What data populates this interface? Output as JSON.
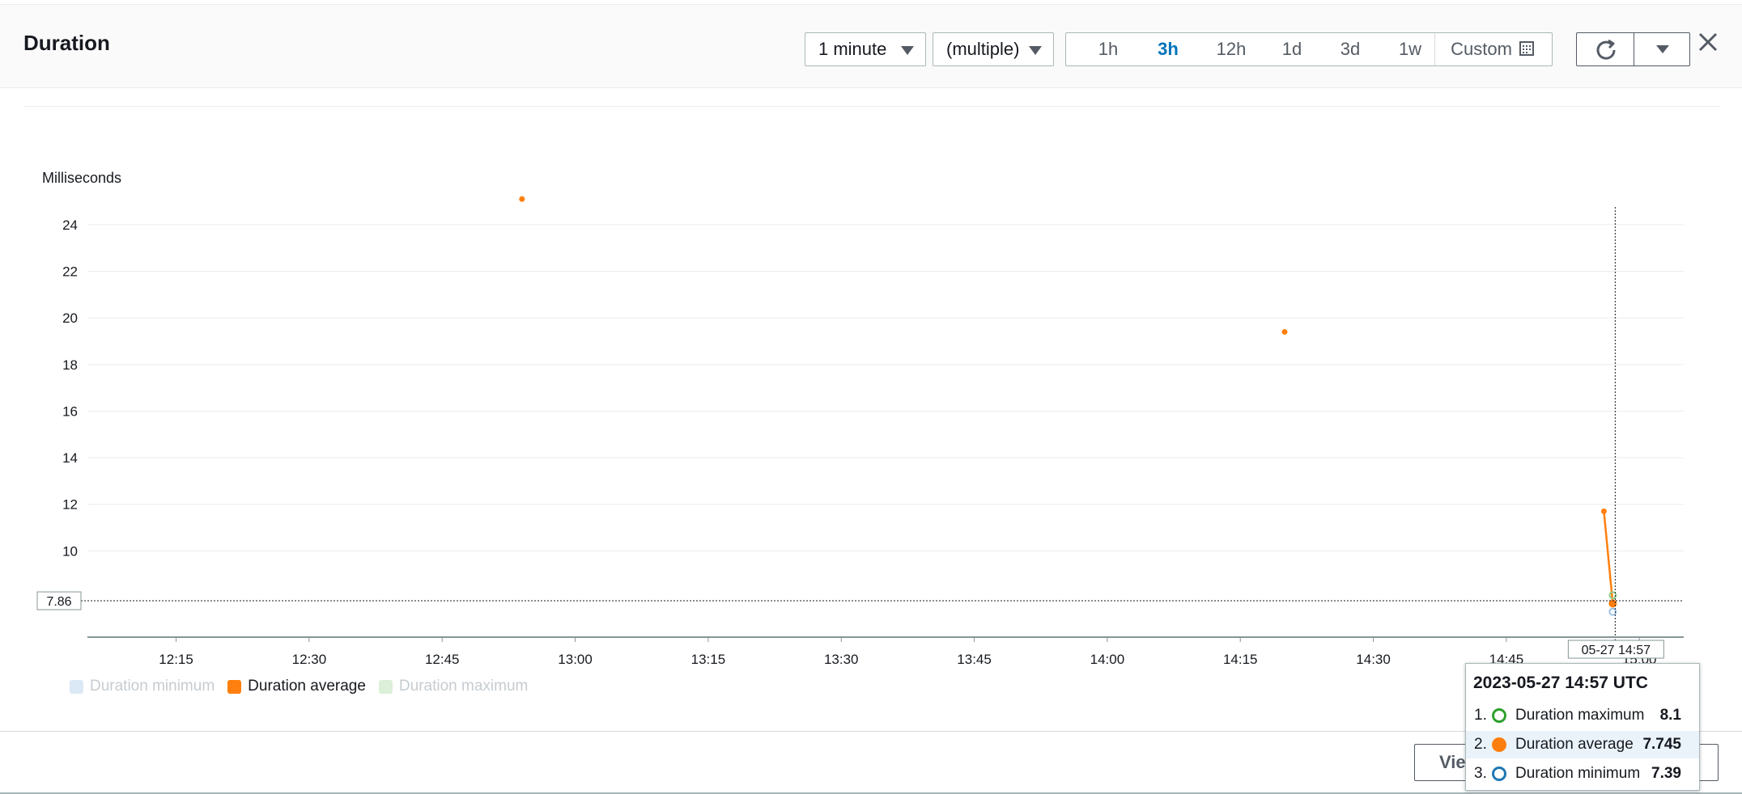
{
  "widget": {
    "title": "Duration",
    "period_select": "1 minute",
    "stat_select": "(multiple)",
    "time_ranges": [
      "1h",
      "3h",
      "12h",
      "1d",
      "3d",
      "1w"
    ],
    "active_range": "3h",
    "custom_label": "Custom",
    "footer_button": "View in metrics"
  },
  "colors": {
    "average": "#ff7f0e",
    "maximum": "#2ca02c",
    "minimum": "#1f77b4",
    "active_range": "#0073bb"
  },
  "icons": [
    "refresh-icon",
    "dropdown-caret-icon",
    "close-icon",
    "calendar-icon"
  ],
  "chart_data": {
    "type": "line",
    "ylabel": "Milliseconds",
    "ylim": [
      6.3,
      25.8
    ],
    "yticks": [
      10,
      12,
      14,
      16,
      18,
      20,
      22,
      24
    ],
    "x_range": [
      "12:05",
      "15:05"
    ],
    "xticks": [
      "12:15",
      "12:30",
      "12:45",
      "13:00",
      "13:15",
      "13:30",
      "13:45",
      "14:00",
      "14:15",
      "14:30",
      "14:45",
      "15:00"
    ],
    "grid": true,
    "legend_position": "bottom-left",
    "series": [
      {
        "name": "Duration minimum",
        "visible": false,
        "points": [
          {
            "x": "14:57",
            "y": 7.39
          }
        ]
      },
      {
        "name": "Duration average",
        "visible": true,
        "points": [
          {
            "x": "12:54",
            "y": 25.1
          },
          {
            "x": "14:20",
            "y": 19.4
          },
          {
            "x": "14:56",
            "y": 11.7
          },
          {
            "x": "14:57",
            "y": 7.745
          }
        ]
      },
      {
        "name": "Duration maximum",
        "visible": false,
        "points": [
          {
            "x": "14:57",
            "y": 8.1
          }
        ]
      }
    ],
    "cursor": {
      "x_label": "05-27 14:57",
      "y_label": "7.86"
    },
    "tooltip": {
      "title": "2023-05-27 14:57 UTC",
      "rows": [
        {
          "index": "1.",
          "name": "Duration maximum",
          "value": "8.1"
        },
        {
          "index": "2.",
          "name": "Duration average",
          "value": "7.745"
        },
        {
          "index": "3.",
          "name": "Duration minimum",
          "value": "7.39"
        }
      ]
    }
  }
}
